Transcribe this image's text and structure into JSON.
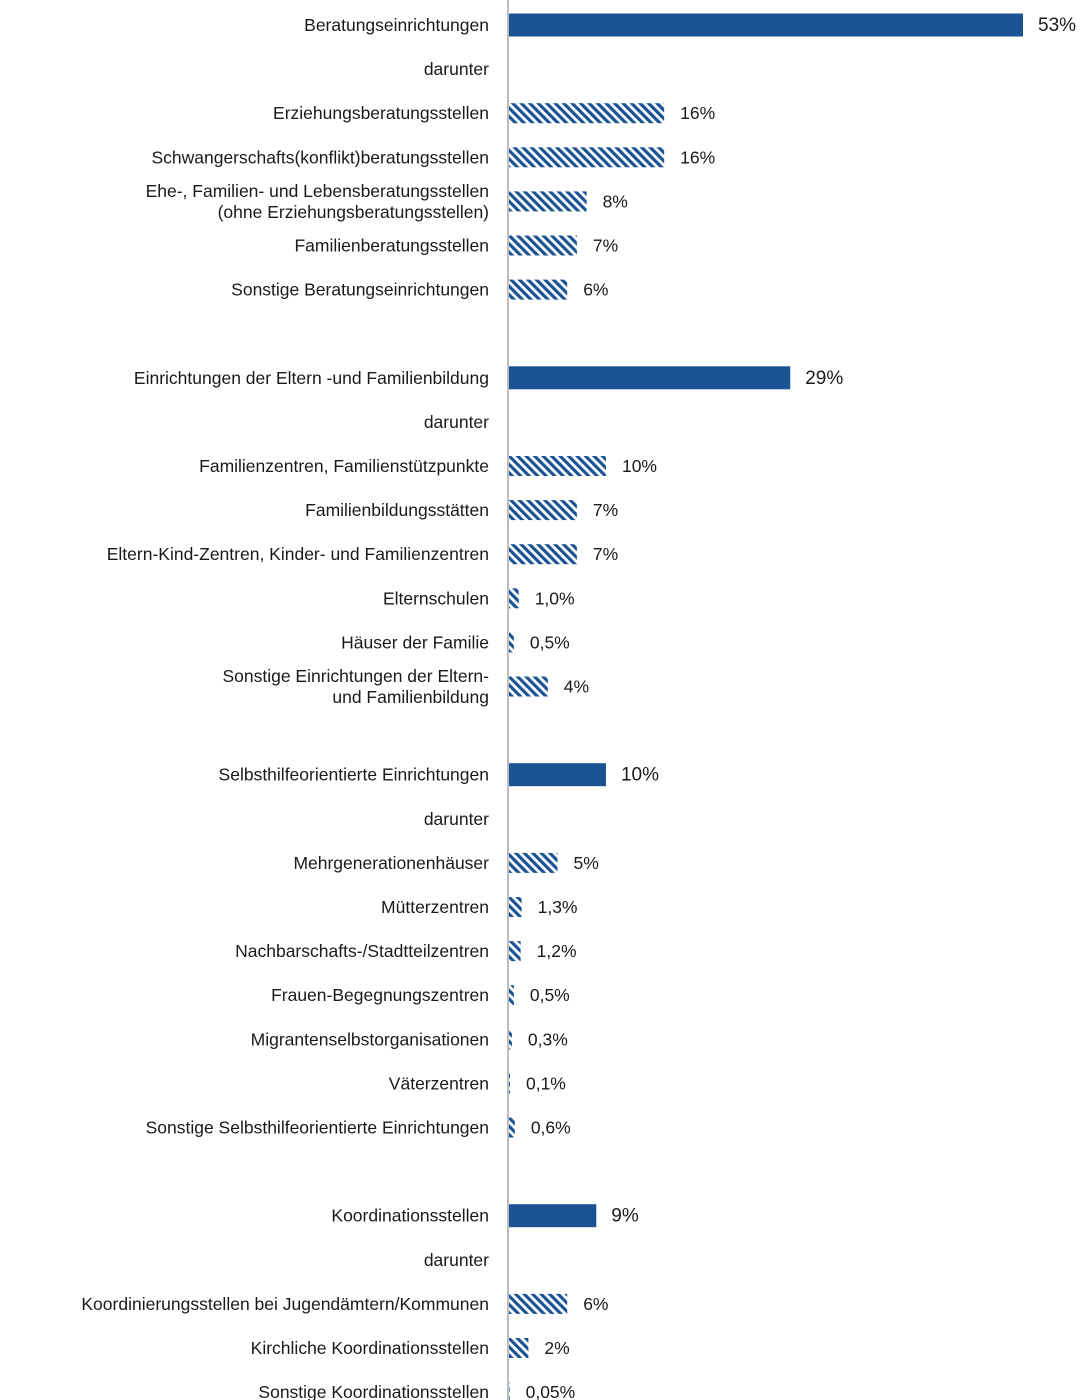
{
  "chart_data": {
    "type": "bar",
    "orientation": "horizontal",
    "grid": false,
    "colors": {
      "main": "#1b5294",
      "hatch": "#1b5294",
      "axis": "#a6a6a6"
    },
    "rows": [
      {
        "label": "Beratungseinrichtungen",
        "value": 53,
        "value_label": "53%",
        "kind": "main"
      },
      {
        "label": "darunter",
        "value": null,
        "value_label": "",
        "kind": "note"
      },
      {
        "label": "Erziehungsberatungsstellen",
        "value": 16,
        "value_label": "16%",
        "kind": "sub"
      },
      {
        "label": "Schwangerschafts(konflikt)beratungsstellen",
        "value": 16,
        "value_label": "16%",
        "kind": "sub"
      },
      {
        "label": "Ehe-, Familien- und Lebensberatungsstellen\n(ohne Erziehungsberatungsstellen)",
        "value": 8,
        "value_label": "8%",
        "kind": "sub"
      },
      {
        "label": "Familienberatungsstellen",
        "value": 7,
        "value_label": "7%",
        "kind": "sub"
      },
      {
        "label": "Sonstige Beratungseinrichtungen",
        "value": 6,
        "value_label": "6%",
        "kind": "sub"
      },
      {
        "label": "",
        "value": null,
        "value_label": "",
        "kind": "gap"
      },
      {
        "label": "Einrichtungen der Eltern -und Familienbildung",
        "value": 29,
        "value_label": "29%",
        "kind": "main"
      },
      {
        "label": "darunter",
        "value": null,
        "value_label": "",
        "kind": "note"
      },
      {
        "label": "Familienzentren, Familienstützpunkte",
        "value": 10,
        "value_label": "10%",
        "kind": "sub"
      },
      {
        "label": "Familienbildungsstätten",
        "value": 7,
        "value_label": "7%",
        "kind": "sub"
      },
      {
        "label": "Eltern-Kind-Zentren, Kinder- und Familienzentren",
        "value": 7,
        "value_label": "7%",
        "kind": "sub"
      },
      {
        "label": "Elternschulen",
        "value": 1.0,
        "value_label": "1,0%",
        "kind": "sub"
      },
      {
        "label": "Häuser der Familie",
        "value": 0.5,
        "value_label": "0,5%",
        "kind": "sub"
      },
      {
        "label": "Sonstige Einrichtungen der Eltern-\nund Familienbildung",
        "value": 4,
        "value_label": "4%",
        "kind": "sub"
      },
      {
        "label": "",
        "value": null,
        "value_label": "",
        "kind": "gap"
      },
      {
        "label": "Selbsthilfeorientierte Einrichtungen",
        "value": 10,
        "value_label": "10%",
        "kind": "main"
      },
      {
        "label": "darunter",
        "value": null,
        "value_label": "",
        "kind": "note"
      },
      {
        "label": "Mehrgenerationenhäuser",
        "value": 5,
        "value_label": "5%",
        "kind": "sub"
      },
      {
        "label": "Mütterzentren",
        "value": 1.3,
        "value_label": "1,3%",
        "kind": "sub"
      },
      {
        "label": "Nachbarschafts-/Stadtteilzentren",
        "value": 1.2,
        "value_label": "1,2%",
        "kind": "sub"
      },
      {
        "label": "Frauen-Begegnungszentren",
        "value": 0.5,
        "value_label": "0,5%",
        "kind": "sub"
      },
      {
        "label": "Migrantenselbstorganisationen",
        "value": 0.3,
        "value_label": "0,3%",
        "kind": "sub"
      },
      {
        "label": "Väterzentren",
        "value": 0.1,
        "value_label": "0,1%",
        "kind": "sub"
      },
      {
        "label": "Sonstige Selbsthilfeorientierte Einrichtungen",
        "value": 0.6,
        "value_label": "0,6%",
        "kind": "sub"
      },
      {
        "label": "",
        "value": null,
        "value_label": "",
        "kind": "gap"
      },
      {
        "label": "Koordinationsstellen",
        "value": 9,
        "value_label": "9%",
        "kind": "main"
      },
      {
        "label": "darunter",
        "value": null,
        "value_label": "",
        "kind": "note"
      },
      {
        "label": "Koordinierungsstellen bei Jugendämtern/Kommunen",
        "value": 6,
        "value_label": "6%",
        "kind": "sub"
      },
      {
        "label": "Kirchliche Koordinationsstellen",
        "value": 2,
        "value_label": "2%",
        "kind": "sub"
      },
      {
        "label": "Sonstige Koordinationsstellen",
        "value": 0.05,
        "value_label": "0,05%",
        "kind": "sub"
      }
    ]
  }
}
